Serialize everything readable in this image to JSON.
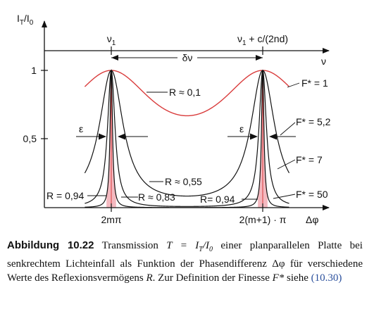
{
  "chart_data": {
    "type": "line",
    "ylabel": "I_T/I_0",
    "yticks": [
      {
        "value": 1,
        "label": "1"
      },
      {
        "value": 0.5,
        "label": "0,5"
      }
    ],
    "xlabel_bottom": "Δφ",
    "xlabel_top": "ν",
    "xticks_bottom": [
      "2mπ",
      "2(m+1) · π"
    ],
    "xticks_top": [
      "ν_1",
      "ν_1 + c/(2nd)"
    ],
    "spacing_label": "δν",
    "width_label": "ε",
    "phase_range": [
      -1.1,
      7.38
    ],
    "peak_phases": [
      0,
      6.283
    ],
    "ylim": [
      0,
      1.15
    ],
    "series": [
      {
        "name": "R ≈ 0,1",
        "reflectivity": 0.1,
        "finesse_label": "F* = 1"
      },
      {
        "name": "R ≈ 0,55",
        "reflectivity": 0.55,
        "finesse_label": "F* = 5,2"
      },
      {
        "name": "R ≈ 0,83",
        "reflectivity": 0.83,
        "finesse_label": "F* = 7"
      },
      {
        "name": "R = 0,94",
        "reflectivity": 0.94,
        "finesse_label": "F* = 50"
      }
    ],
    "right_series_label": "R= 0,94",
    "colors": {
      "r01": "#d93b3b",
      "other": "#111111",
      "fill": "#f4b9c0"
    }
  },
  "caption": {
    "figure_number": "Abbildung 10.22",
    "text_1": " Transmission ",
    "formula": "T = I_T/I_0",
    "text_2": " einer planparallelen Platte bei senkrechtem Lichteinfall als Funktion der Phasendifferenz Δφ für verschiedene Werte des Reflexionsvermögens ",
    "text_r": "R",
    "text_3": ". Zur Definition der Finesse ",
    "text_f": "F*",
    "text_4": " siehe ",
    "reference": "(10.30)"
  }
}
